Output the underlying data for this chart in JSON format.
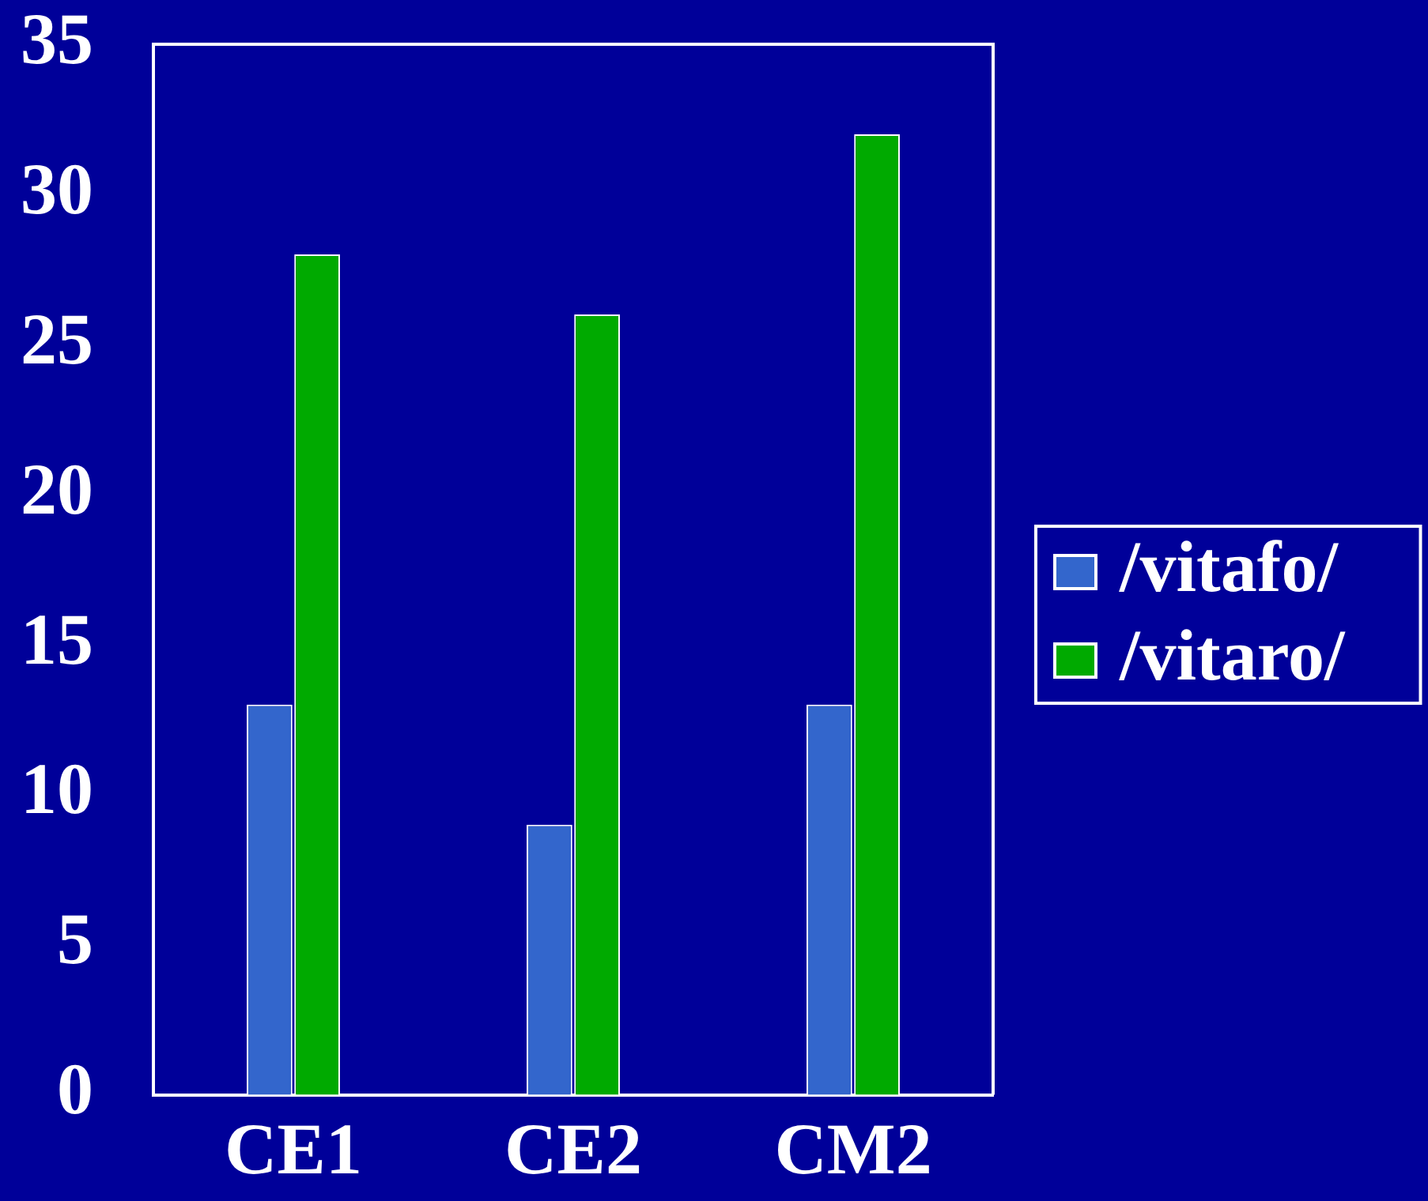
{
  "chart_data": {
    "type": "bar",
    "categories": [
      "CE1",
      "CE2",
      "CM2"
    ],
    "series": [
      {
        "name": "/vitafo/",
        "color": "#3366cc",
        "values": [
          13,
          9,
          13
        ]
      },
      {
        "name": "/vitaro/",
        "color": "#00aa00",
        "values": [
          28,
          26,
          32
        ]
      }
    ],
    "ylim": [
      0,
      35
    ],
    "yticks": [
      0,
      5,
      10,
      15,
      20,
      25,
      30,
      35
    ],
    "grid": false,
    "legend": "right"
  }
}
